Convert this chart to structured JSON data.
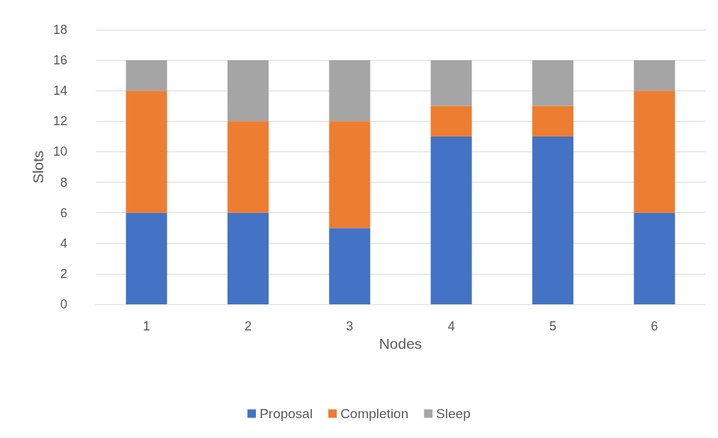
{
  "chart_data": {
    "type": "bar",
    "stacked": true,
    "xlabel": "Nodes",
    "ylabel": "Slots",
    "categories": [
      "1",
      "2",
      "3",
      "4",
      "5",
      "6"
    ],
    "series": [
      {
        "name": "Proposal",
        "color": "#4472c4",
        "values": [
          6,
          6,
          5,
          11,
          11,
          6
        ]
      },
      {
        "name": "Completion",
        "color": "#ed7d31",
        "values": [
          8,
          6,
          7,
          2,
          2,
          8
        ]
      },
      {
        "name": "Sleep",
        "color": "#a5a5a5",
        "values": [
          2,
          4,
          4,
          3,
          3,
          2
        ]
      }
    ],
    "ylim": [
      0,
      18
    ],
    "yticks": [
      0,
      2,
      4,
      6,
      8,
      10,
      12,
      14,
      16,
      18
    ],
    "grid": "y",
    "legend": "bottom"
  }
}
